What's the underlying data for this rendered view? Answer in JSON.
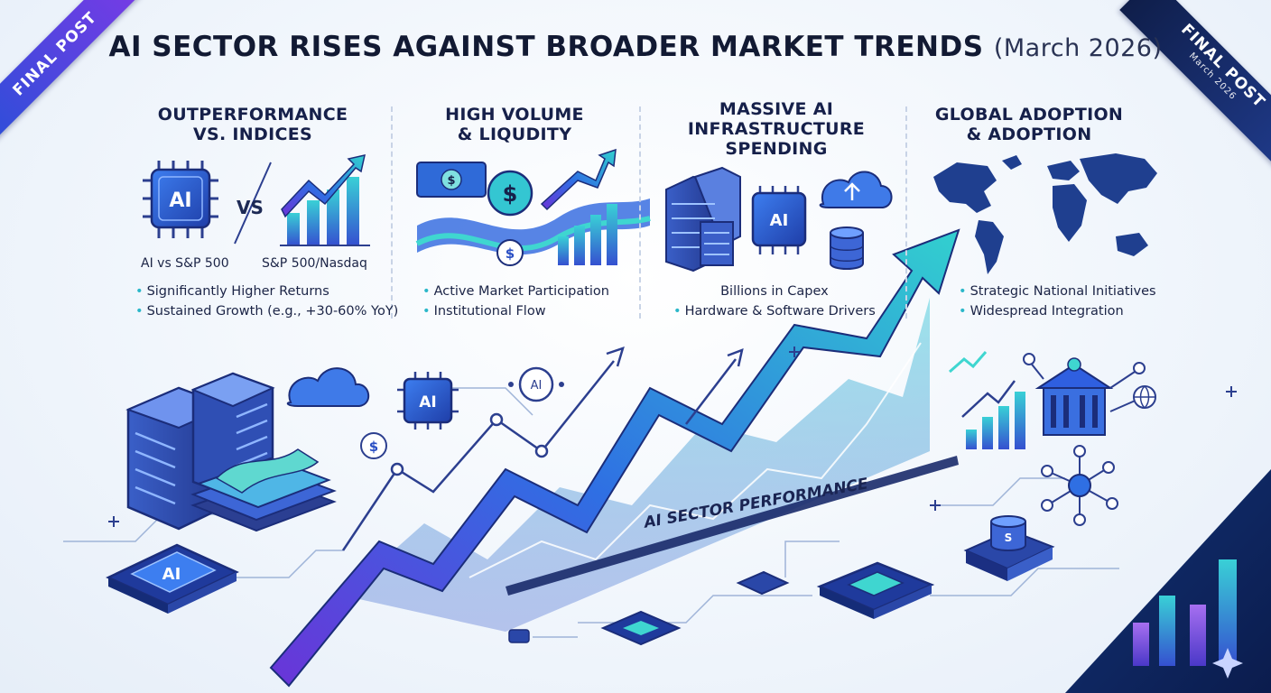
{
  "title": {
    "main": "AI SECTOR RISES AGAINST BROADER MARKET TRENDS",
    "date": "(March 2026)"
  },
  "ribbons": {
    "left": {
      "label": "FINAL POST"
    },
    "right": {
      "label": "FINAL POST",
      "sub": "March 2026"
    }
  },
  "columns": [
    {
      "heading_line1": "OUTPERFORMANCE",
      "heading_line2": "VS. INDICES",
      "vs_label": "VS",
      "caption_left": "AI vs S&P 500",
      "caption_right": "S&P 500/Nasdaq",
      "bullets": [
        "Significantly Higher Returns",
        "Sustained Growth (e.g., +30-60% YoY)"
      ]
    },
    {
      "heading_line1": "HIGH VOLUME",
      "heading_line2": "& LIQUDITY",
      "bullets": [
        "Active Market Participation",
        "Institutional Flow"
      ]
    },
    {
      "heading_line1": "MASSIVE AI",
      "heading_line2": "INFRASTRUCTURE",
      "heading_line3": "SPENDING",
      "bullets": [
        "Billions in Capex",
        "Hardware & Software Drivers"
      ]
    },
    {
      "heading_line1": "GLOBAL ADOPTION",
      "heading_line2": "& ADOPTION",
      "bullets": [
        "Strategic National Initiatives",
        "Widespread Integration"
      ]
    }
  ],
  "chip_labels": {
    "ai": "AI",
    "dollar": "$",
    "storage": "S"
  },
  "performance_label": "AI SECTOR PERFORMANCE",
  "icons": [
    "ai-chip-icon",
    "growth-chart-icon",
    "money-flow-icon",
    "server-rack-icon",
    "cloud-upload-icon",
    "database-icon",
    "world-map-icon",
    "government-building-icon",
    "network-globe-icon",
    "sparkle-icon"
  ],
  "colors": {
    "navy": "#16204a",
    "blue": "#2f5fe0",
    "purple": "#7a3ae6",
    "teal": "#2bc3c9",
    "cyan": "#3fd6d0"
  }
}
